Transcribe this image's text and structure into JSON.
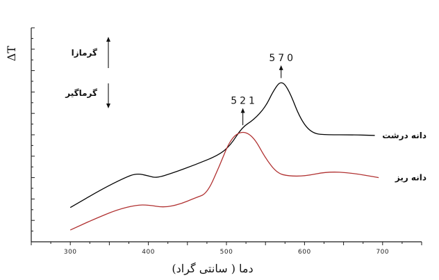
{
  "chart_data": {
    "type": "line",
    "title": "",
    "xlabel": "دما ( سانتی گراد)",
    "ylabel": "ΔT",
    "x_tick_labels": [
      "300",
      "400",
      "500",
      "600",
      "700"
    ],
    "xlim": [
      250,
      750
    ],
    "ylim": [
      0,
      10
    ],
    "grid": false,
    "series": [
      {
        "name": "دانه درشت",
        "color": "#000000",
        "points": [
          [
            300,
            1.6
          ],
          [
            340,
            2.45
          ],
          [
            370,
            3.0
          ],
          [
            385,
            3.2
          ],
          [
            400,
            3.08
          ],
          [
            410,
            2.98
          ],
          [
            430,
            3.2
          ],
          [
            460,
            3.6
          ],
          [
            490,
            4.05
          ],
          [
            505,
            4.5
          ],
          [
            520,
            5.35
          ],
          [
            535,
            5.7
          ],
          [
            550,
            6.3
          ],
          [
            560,
            7.05
          ],
          [
            570,
            7.55
          ],
          [
            580,
            7.1
          ],
          [
            595,
            5.7
          ],
          [
            610,
            5.05
          ],
          [
            630,
            5.0
          ],
          [
            660,
            5.0
          ],
          [
            690,
            4.97
          ]
        ]
      },
      {
        "name": "دانه ریز",
        "color": "#b03030",
        "points": [
          [
            300,
            0.55
          ],
          [
            330,
            1.05
          ],
          [
            360,
            1.5
          ],
          [
            385,
            1.72
          ],
          [
            400,
            1.72
          ],
          [
            420,
            1.6
          ],
          [
            440,
            1.75
          ],
          [
            460,
            2.05
          ],
          [
            475,
            2.25
          ],
          [
            490,
            3.45
          ],
          [
            505,
            4.8
          ],
          [
            520,
            5.2
          ],
          [
            535,
            4.9
          ],
          [
            550,
            3.9
          ],
          [
            565,
            3.2
          ],
          [
            580,
            3.07
          ],
          [
            600,
            3.07
          ],
          [
            630,
            3.28
          ],
          [
            660,
            3.22
          ],
          [
            695,
            3.0
          ]
        ]
      }
    ],
    "annotations": [
      {
        "label": "521",
        "x": 521,
        "y_from": 5.45,
        "y_to": 6.25
      },
      {
        "label": "570",
        "x": 570,
        "y_from": 7.65,
        "y_to": 8.25
      }
    ],
    "direction_labels": {
      "exo": "گرمازا",
      "endo": "گرماگیر"
    }
  }
}
